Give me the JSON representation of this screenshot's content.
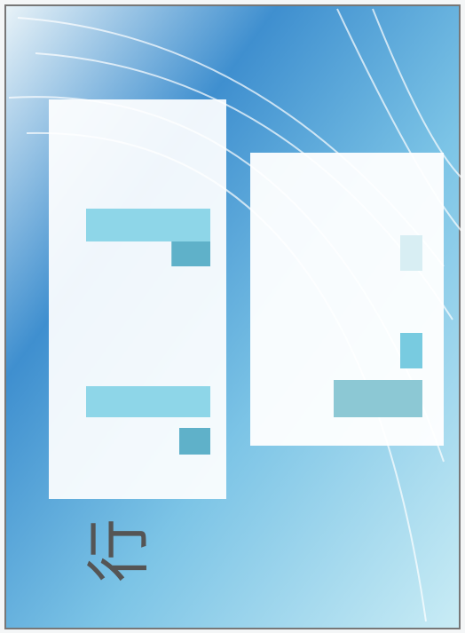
{
  "slide": {
    "title": "行"
  },
  "chart_data": [
    {
      "type": "bar",
      "categories": [
        null,
        null
      ],
      "series": [
        {
          "color": "#8ed6e8",
          "values": [
            16,
            16
          ]
        },
        {
          "color": "#5fb1c9",
          "values": [
            4,
            5
          ]
        }
      ]
    },
    {
      "type": "bar",
      "categories": [
        null,
        null,
        null
      ],
      "values": [
        4,
        1,
        1
      ],
      "colors": [
        "#8cc8d4",
        "#78cbe0",
        "#d8eef3"
      ]
    }
  ]
}
